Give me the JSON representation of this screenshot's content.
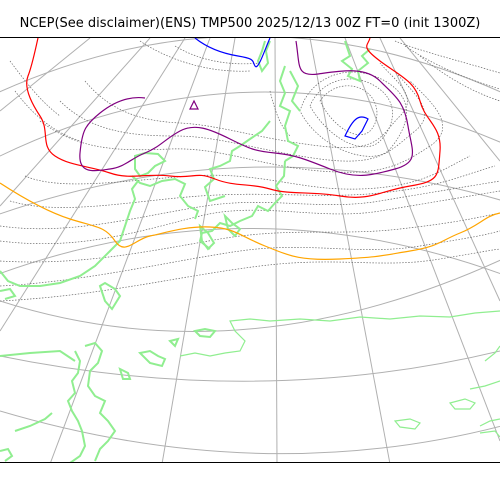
{
  "title": "NCEP(See disclaimer)(ENS) TMP500 2025/12/13 00Z FT=0 (init 1300Z)",
  "colors": {
    "graticule": "#b0b0b0",
    "isotherm_minor": "#666666",
    "coastline": "#90ee90",
    "warm_contour": "#ffa500",
    "mid_contour": "#ff0000",
    "cold_contour": "#800080",
    "coldest_contour": "#0000ff"
  },
  "map_layers": [
    {
      "name": "graticule",
      "style": "solid gray"
    },
    {
      "name": "temperature-isotherms",
      "style": "dotted black"
    },
    {
      "name": "coastlines",
      "style": "light green"
    },
    {
      "name": "orange-isotherm"
    },
    {
      "name": "red-isotherm"
    },
    {
      "name": "purple-isotherm"
    },
    {
      "name": "blue-isotherm"
    }
  ]
}
